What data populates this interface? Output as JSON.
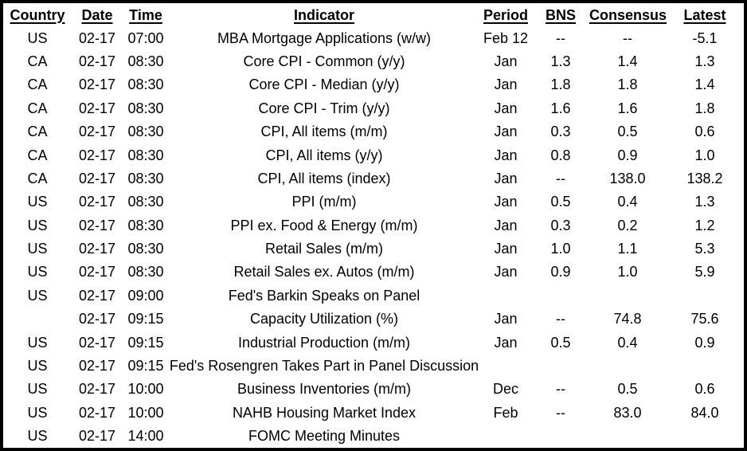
{
  "colors": {
    "background": "#ffffff",
    "text": "#000000",
    "border": "#000000"
  },
  "table": {
    "name": "economic-calendar",
    "columns": [
      {
        "key": "country",
        "label": "Country"
      },
      {
        "key": "date",
        "label": "Date"
      },
      {
        "key": "time",
        "label": "Time"
      },
      {
        "key": "indicator",
        "label": "Indicator"
      },
      {
        "key": "period",
        "label": "Period"
      },
      {
        "key": "bns",
        "label": "BNS"
      },
      {
        "key": "consensus",
        "label": "Consensus"
      },
      {
        "key": "latest",
        "label": "Latest"
      }
    ],
    "rows": [
      {
        "country": "US",
        "date": "02-17",
        "time": "07:00",
        "indicator": "MBA Mortgage Applications (w/w)",
        "period": "Feb 12",
        "bns": "--",
        "consensus": "--",
        "latest": "-5.1"
      },
      {
        "country": "CA",
        "date": "02-17",
        "time": "08:30",
        "indicator": "Core CPI - Common (y/y)",
        "period": "Jan",
        "bns": "1.3",
        "consensus": "1.4",
        "latest": "1.3"
      },
      {
        "country": "CA",
        "date": "02-17",
        "time": "08:30",
        "indicator": "Core CPI - Median (y/y)",
        "period": "Jan",
        "bns": "1.8",
        "consensus": "1.8",
        "latest": "1.4"
      },
      {
        "country": "CA",
        "date": "02-17",
        "time": "08:30",
        "indicator": "Core CPI - Trim (y/y)",
        "period": "Jan",
        "bns": "1.6",
        "consensus": "1.6",
        "latest": "1.8"
      },
      {
        "country": "CA",
        "date": "02-17",
        "time": "08:30",
        "indicator": "CPI, All items (m/m)",
        "period": "Jan",
        "bns": "0.3",
        "consensus": "0.5",
        "latest": "0.6"
      },
      {
        "country": "CA",
        "date": "02-17",
        "time": "08:30",
        "indicator": "CPI, All items (y/y)",
        "period": "Jan",
        "bns": "0.8",
        "consensus": "0.9",
        "latest": "1.0"
      },
      {
        "country": "CA",
        "date": "02-17",
        "time": "08:30",
        "indicator": "CPI, All items (index)",
        "period": "Jan",
        "bns": "--",
        "consensus": "138.0",
        "latest": "138.2"
      },
      {
        "country": "US",
        "date": "02-17",
        "time": "08:30",
        "indicator": "PPI (m/m)",
        "period": "Jan",
        "bns": "0.5",
        "consensus": "0.4",
        "latest": "1.3"
      },
      {
        "country": "US",
        "date": "02-17",
        "time": "08:30",
        "indicator": "PPI ex. Food & Energy (m/m)",
        "period": "Jan",
        "bns": "0.3",
        "consensus": "0.2",
        "latest": "1.2"
      },
      {
        "country": "US",
        "date": "02-17",
        "time": "08:30",
        "indicator": "Retail Sales (m/m)",
        "period": "Jan",
        "bns": "1.0",
        "consensus": "1.1",
        "latest": "5.3"
      },
      {
        "country": "US",
        "date": "02-17",
        "time": "08:30",
        "indicator": "Retail Sales ex. Autos (m/m)",
        "period": "Jan",
        "bns": "0.9",
        "consensus": "1.0",
        "latest": "5.9"
      },
      {
        "country": "US",
        "date": "02-17",
        "time": "09:00",
        "indicator": "Fed's Barkin Speaks on Panel",
        "period": "",
        "bns": "",
        "consensus": "",
        "latest": ""
      },
      {
        "country": "",
        "date": "02-17",
        "time": "09:15",
        "indicator": "Capacity Utilization (%)",
        "period": "Jan",
        "bns": "--",
        "consensus": "74.8",
        "latest": "75.6"
      },
      {
        "country": "US",
        "date": "02-17",
        "time": "09:15",
        "indicator": "Industrial Production (m/m)",
        "period": "Jan",
        "bns": "0.5",
        "consensus": "0.4",
        "latest": "0.9"
      },
      {
        "country": "US",
        "date": "02-17",
        "time": "09:15",
        "indicator": "Fed's Rosengren Takes Part in Panel Discussion",
        "period": "",
        "bns": "",
        "consensus": "",
        "latest": ""
      },
      {
        "country": "US",
        "date": "02-17",
        "time": "10:00",
        "indicator": "Business Inventories (m/m)",
        "period": "Dec",
        "bns": "--",
        "consensus": "0.5",
        "latest": "0.6"
      },
      {
        "country": "US",
        "date": "02-17",
        "time": "10:00",
        "indicator": "NAHB Housing Market Index",
        "period": "Feb",
        "bns": "--",
        "consensus": "83.0",
        "latest": "84.0"
      },
      {
        "country": "US",
        "date": "02-17",
        "time": "14:00",
        "indicator": "FOMC Meeting Minutes",
        "period": "",
        "bns": "",
        "consensus": "",
        "latest": ""
      }
    ]
  }
}
